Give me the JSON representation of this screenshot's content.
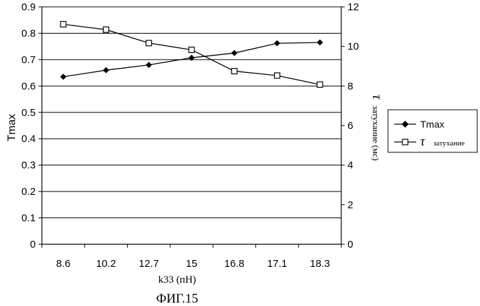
{
  "chart_data": {
    "type": "line",
    "categories": [
      "8.6",
      "10.2",
      "12.7",
      "15",
      "16.8",
      "17.1",
      "18.3"
    ],
    "series": [
      {
        "name": "Tmax",
        "axis": "left",
        "marker": "filled-diamond",
        "values": [
          0.635,
          0.66,
          0.68,
          0.707,
          0.725,
          0.762,
          0.765
        ]
      },
      {
        "name": "τ затухание",
        "axis": "right",
        "marker": "open-square",
        "values": [
          11.12,
          10.85,
          10.17,
          9.83,
          8.75,
          8.53,
          8.07
        ]
      }
    ],
    "xlabel": "k33 (пН)",
    "ylabel_left": "Tmax",
    "ylabel_right_symbol": "τ",
    "ylabel_right": "затухание (мс)",
    "ylim_left": [
      0,
      0.9
    ],
    "ylim_right": [
      0,
      12
    ],
    "yticks_left": [
      "0",
      "0.1",
      "0.2",
      "0.3",
      "0.4",
      "0.5",
      "0.6",
      "0.7",
      "0.8",
      "0.9"
    ],
    "yticks_right": [
      "0",
      "2",
      "4",
      "6",
      "8",
      "10",
      "12"
    ],
    "grid": true,
    "legend_position": "right",
    "legend": [
      {
        "label": "Tmax"
      },
      {
        "symbol": "τ",
        "label": "затухание"
      }
    ]
  },
  "caption": "ФИГ.15"
}
